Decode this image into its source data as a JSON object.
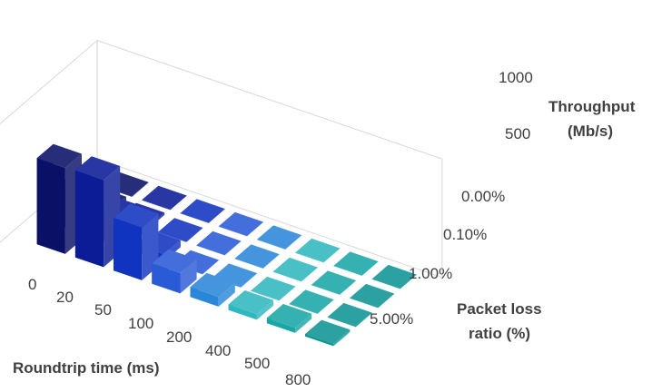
{
  "chart_data": {
    "type": "bar3d",
    "x_label": "Roundtrip time (ms)",
    "y_label": "Packet loss ratio (%)",
    "y_label_lines": [
      "Packet loss",
      "ratio (%)"
    ],
    "z_label_lines": [
      "Throughput",
      "(Mb/s)"
    ],
    "x_categories": [
      "0",
      "20",
      "50",
      "100",
      "200",
      "400",
      "500",
      "800"
    ],
    "y_categories": [
      "0.00%",
      "0.10%",
      "1.00%",
      "5.00%"
    ],
    "y_ticks_shown": [
      "0.00%",
      "0.10%",
      "1.00%",
      "5.00%"
    ],
    "z_ticks_shown": [
      500,
      1000
    ],
    "z_range": [
      0,
      1200
    ],
    "grid": false,
    "colors": [
      "#0a1066",
      "#0b1c96",
      "#1134c0",
      "#2a5ad6",
      "#2a86d8",
      "#2fb7be",
      "#19a6a6",
      "#0e9494"
    ],
    "series": [
      {
        "name": "0.00%",
        "values": [
          930,
          940,
          570,
          220,
          105,
          60,
          55,
          25
        ]
      },
      {
        "name": "0.10%",
        "values": [
          440,
          300,
          75,
          3,
          2,
          2,
          2,
          2
        ]
      },
      {
        "name": "1.00%",
        "values": [
          55,
          25,
          3,
          2,
          2,
          2,
          2,
          2
        ]
      },
      {
        "name": "5.00%",
        "values": [
          6,
          3,
          2,
          2,
          2,
          2,
          2,
          2
        ]
      }
    ]
  }
}
